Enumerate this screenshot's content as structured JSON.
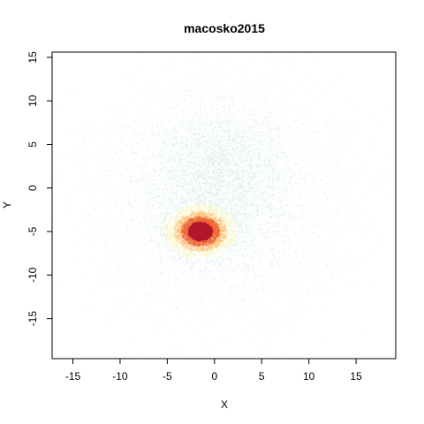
{
  "chart_data": {
    "type": "scatter",
    "title": "macosko2015",
    "xlabel": "X",
    "ylabel": "Y",
    "xlim": [
      -17.2,
      19.2
    ],
    "ylim": [
      -19.6,
      15.6
    ],
    "x_ticks": [
      -15,
      -10,
      -5,
      0,
      5,
      10,
      15
    ],
    "y_ticks": [
      -15,
      -10,
      -5,
      0,
      5,
      10,
      15
    ],
    "grid": false,
    "legend": "none",
    "color_encoding": "point density (spectral palette: light teal = low, yellow/orange = medium, dark red = high)",
    "colors": {
      "low": "#bfdedb",
      "medium_low": "#f4f0b0",
      "medium": "#fdbe6e",
      "high": "#ef6a3a",
      "peak": "#b2182b"
    },
    "point_clusters": [
      {
        "name": "diffuse halo",
        "center": [
          0.5,
          -1.0
        ],
        "spread": [
          6.0,
          6.2
        ],
        "approx_points": 6000,
        "density": "low"
      },
      {
        "name": "upper lobe",
        "center": [
          0.5,
          3.0
        ],
        "spread": [
          3.5,
          3.5
        ],
        "approx_points": 1800,
        "density": "low"
      },
      {
        "name": "dense core",
        "center": [
          -1.5,
          -5.0
        ],
        "spread": [
          1.8,
          1.4
        ],
        "approx_points": 2600,
        "density": "high"
      },
      {
        "name": "core peak",
        "center": [
          -1.3,
          -4.8
        ],
        "spread": [
          0.8,
          0.6
        ],
        "approx_points": 1600,
        "density": "peak"
      }
    ]
  }
}
